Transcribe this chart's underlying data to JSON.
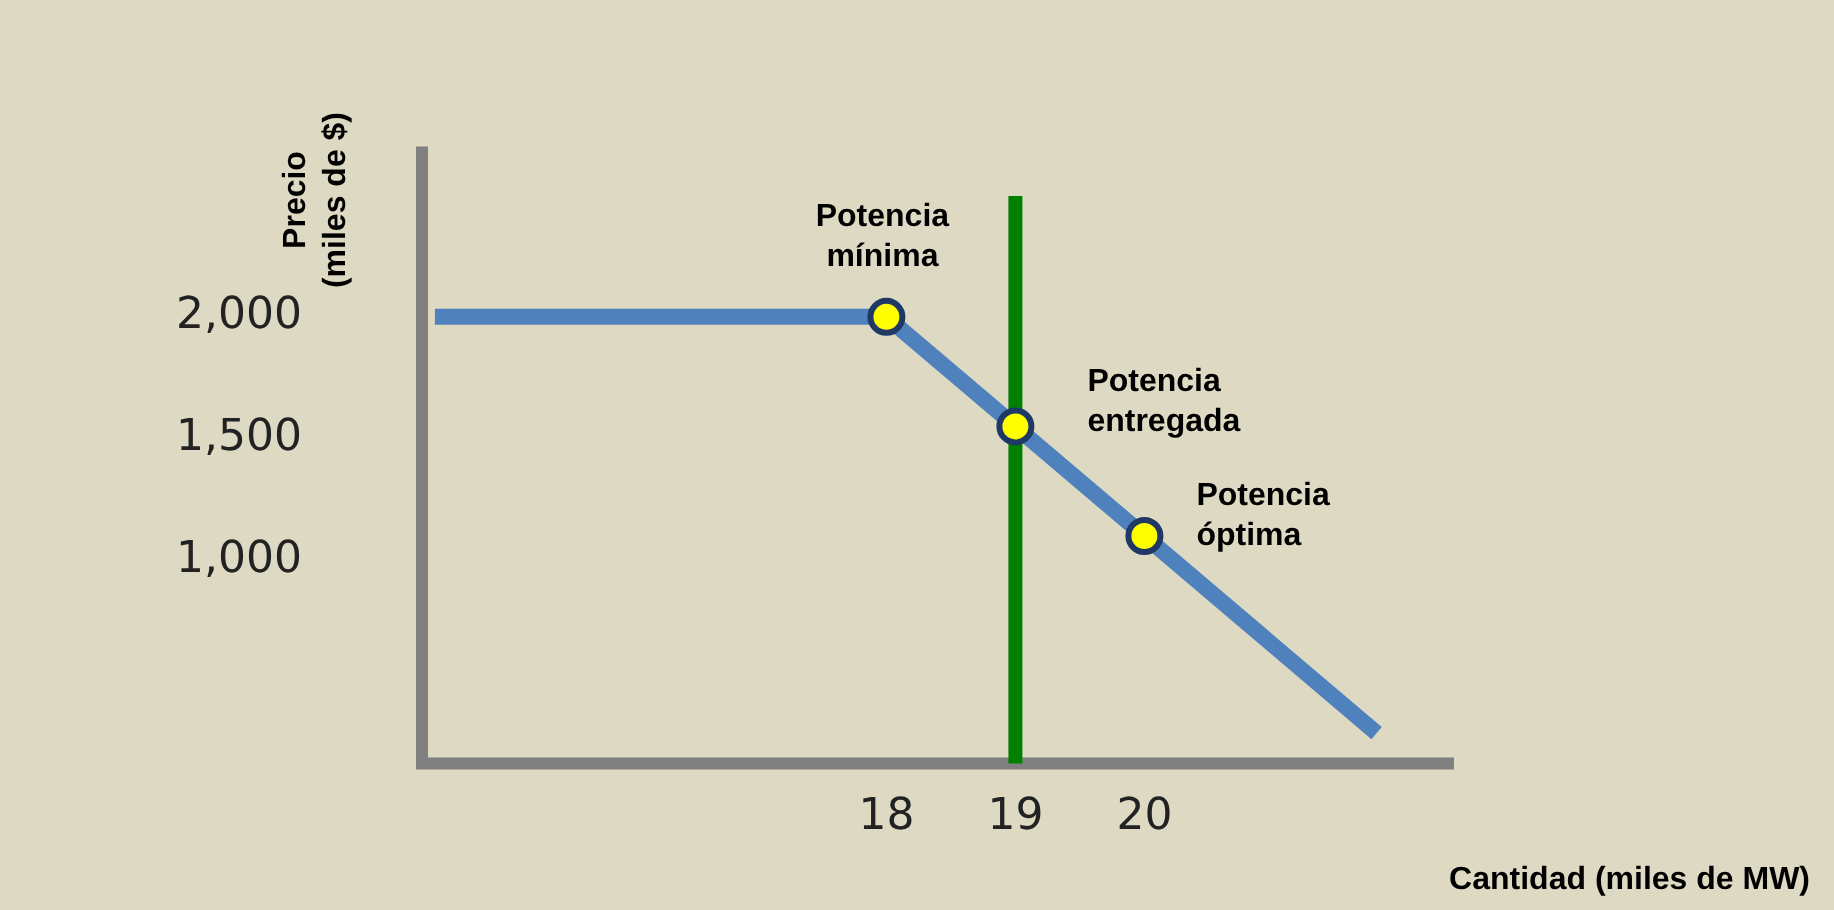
{
  "chart_data": {
    "type": "line",
    "xlabel": "Cantidad (miles de MW)",
    "ylabel": "Precio\n(miles de $)",
    "xlim": [
      14.4,
      22.4
    ],
    "ylim": [
      165,
      2700
    ],
    "xticks": [
      18,
      19,
      20
    ],
    "yticks": [
      {
        "value": 1000,
        "label": "1,000"
      },
      {
        "value": 1500,
        "label": "1,500"
      },
      {
        "value": 2000,
        "label": "2,000"
      }
    ],
    "grid": false,
    "legend": false,
    "line_style": "solid",
    "series": [
      {
        "color": "#4f81bd",
        "x": [
          14.5,
          18,
          21.8
        ],
        "values": [
          2000,
          2000,
          290
        ],
        "marker": "none"
      },
      {
        "type": "scatter",
        "color": "#ffff00",
        "x": [
          18,
          19,
          20
        ],
        "values": [
          2000,
          1550,
          1100
        ],
        "marker": "circle"
      }
    ],
    "ref_lines": [
      {
        "axis": "x",
        "value": 19,
        "label": null,
        "color": "#008000",
        "line_style": "solid"
      }
    ],
    "annotations": [
      {
        "text": "Potencia\nmínima",
        "x": 18,
        "y": 2000
      },
      {
        "text": "Potencia\nentregada",
        "x": 19,
        "y": 1550
      },
      {
        "text": "Potencia\nóptima",
        "x": 20,
        "y": 1100
      }
    ]
  }
}
